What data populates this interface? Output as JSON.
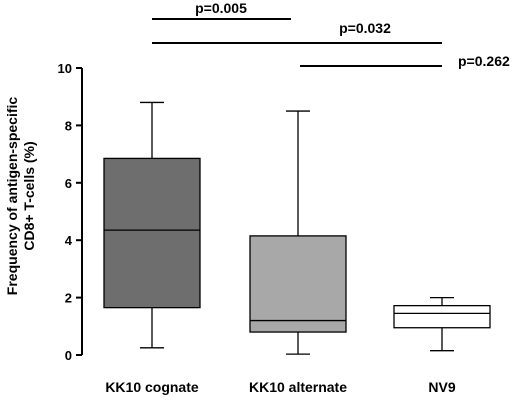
{
  "chart_data": {
    "type": "boxplot",
    "title": "",
    "xlabel": "",
    "ylabel_line1": "Frequency of antigen-specific",
    "ylabel_line2": "CD8+ T-cells (%)",
    "ylim": [
      0,
      10
    ],
    "yticks": [
      0,
      2,
      4,
      6,
      8,
      10
    ],
    "grid": false,
    "categories": [
      "KK10 cognate",
      "KK10 alternate",
      "NV9"
    ],
    "boxes": [
      {
        "category": "KK10 cognate",
        "min": 0.25,
        "q1": 1.65,
        "median": 4.35,
        "q3": 6.85,
        "max": 8.8,
        "fill": "#6e6e6e"
      },
      {
        "category": "KK10 alternate",
        "min": 0.03,
        "q1": 0.8,
        "median": 1.2,
        "q3": 4.15,
        "max": 8.5,
        "fill": "#a8a8a8"
      },
      {
        "category": "NV9",
        "min": 0.15,
        "q1": 0.95,
        "median": 1.45,
        "q3": 1.72,
        "max": 2.0,
        "fill": "#ffffff"
      }
    ],
    "comparisons": [
      {
        "label": "p=0.005",
        "from": "KK10 cognate",
        "to": "KK10 alternate"
      },
      {
        "label": "p=0.032",
        "from": "KK10 cognate",
        "to": "NV9"
      },
      {
        "label": "p=0.262",
        "from": "KK10 alternate",
        "to": "NV9"
      }
    ]
  }
}
